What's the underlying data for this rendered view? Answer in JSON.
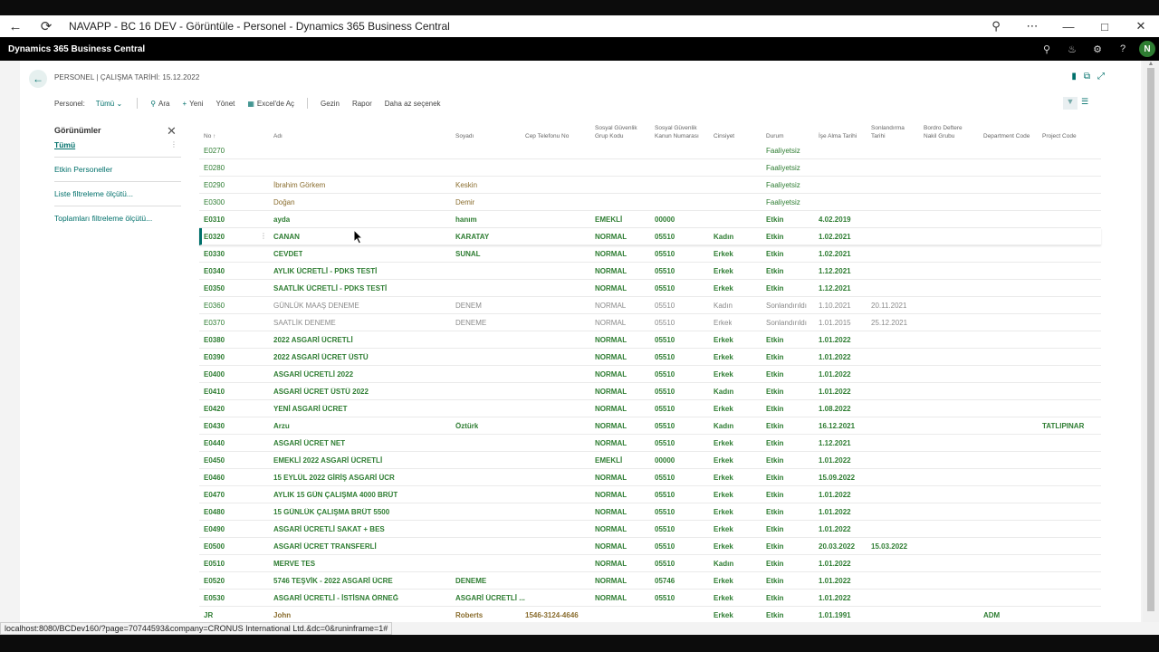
{
  "window": {
    "title": "NAVAPP - BC 16 DEV - Görüntüle - Personel - Dynamics 365 Business Central"
  },
  "app": {
    "name": "Dynamics 365 Business Central",
    "avatar": "N"
  },
  "page": {
    "breadcrumb": "PERSONEL | ÇALIŞMA TARİHİ: 15.12.2022"
  },
  "actions": {
    "filter_label": "Personel:",
    "filter_value": "Tümü",
    "search": "Ara",
    "new": "Yeni",
    "manage": "Yönet",
    "excel": "Excel'de Aç",
    "navigate": "Gezin",
    "report": "Rapor",
    "fewer": "Daha az seçenek"
  },
  "views": {
    "title": "Görünümler",
    "items": [
      "Tümü",
      "Etkin Personeller",
      "Liste filtreleme ölçütü...",
      "Toplamları filtreleme ölçütü..."
    ]
  },
  "columns": {
    "no": "No ↑",
    "adi": "Adı",
    "soyadi": "Soyadı",
    "tel": "Cep Telefonu No",
    "sgk_grup_1": "Sosyal Güvenlik",
    "sgk_grup_2": "Grup Kodu",
    "sgk_kanun_1": "Sosyal Güvenlik",
    "sgk_kanun_2": "Kanun Numarası",
    "cinsiyet": "Cinsiyet",
    "durum": "Durum",
    "ise_alma": "İşe Alma Tarihi",
    "sonlandirma_1": "Sonlandırma",
    "sonlandirma_2": "Tarihi",
    "bordro_1": "Bordro Deftere",
    "bordro_2": "Nakil Grubu",
    "dept": "Department Code",
    "project": "Project Code"
  },
  "rows": [
    {
      "no": "E0270",
      "adi": "",
      "soyadi": "",
      "tel": "",
      "grup": "",
      "kanun": "",
      "cinsiyet": "",
      "durum": "Faaliyetsiz",
      "ise": "",
      "son": "",
      "dept": "",
      "proj": "",
      "kind": "plain"
    },
    {
      "no": "E0280",
      "adi": "",
      "soyadi": "",
      "tel": "",
      "grup": "",
      "kanun": "",
      "cinsiyet": "",
      "durum": "Faaliyetsiz",
      "ise": "",
      "son": "",
      "dept": "",
      "proj": "",
      "kind": "plain"
    },
    {
      "no": "E0290",
      "adi": "İbrahim Görkem",
      "soyadi": "Keskin",
      "tel": "",
      "grup": "",
      "kanun": "",
      "cinsiyet": "",
      "durum": "Faaliyetsiz",
      "ise": "",
      "son": "",
      "dept": "",
      "proj": "",
      "kind": "plain"
    },
    {
      "no": "E0300",
      "adi": "Doğan",
      "soyadi": "Demir",
      "tel": "",
      "grup": "",
      "kanun": "",
      "cinsiyet": "",
      "durum": "Faaliyetsiz",
      "ise": "",
      "son": "",
      "dept": "",
      "proj": "",
      "kind": "plain"
    },
    {
      "no": "E0310",
      "adi": "ayda",
      "soyadi": "hanım",
      "tel": "",
      "grup": "EMEKLİ",
      "kanun": "00000",
      "cinsiyet": "",
      "durum": "Etkin",
      "ise": "4.02.2019",
      "son": "",
      "dept": "",
      "proj": "",
      "kind": "active"
    },
    {
      "no": "E0320",
      "adi": "CANAN",
      "soyadi": "KARATAY",
      "tel": "",
      "grup": "NORMAL",
      "kanun": "05510",
      "cinsiyet": "Kadın",
      "durum": "Etkin",
      "ise": "1.02.2021",
      "son": "",
      "dept": "",
      "proj": "",
      "kind": "active",
      "selected": true
    },
    {
      "no": "E0330",
      "adi": "CEVDET",
      "soyadi": "SUNAL",
      "tel": "",
      "grup": "NORMAL",
      "kanun": "05510",
      "cinsiyet": "Erkek",
      "durum": "Etkin",
      "ise": "1.02.2021",
      "son": "",
      "dept": "",
      "proj": "",
      "kind": "active"
    },
    {
      "no": "E0340",
      "adi": "AYLIK ÜCRETLİ - PDKS TESTİ",
      "soyadi": "",
      "tel": "",
      "grup": "NORMAL",
      "kanun": "05510",
      "cinsiyet": "Erkek",
      "durum": "Etkin",
      "ise": "1.12.2021",
      "son": "",
      "dept": "",
      "proj": "",
      "kind": "active"
    },
    {
      "no": "E0350",
      "adi": "SAATLİK ÜCRETLİ - PDKS TESTİ",
      "soyadi": "",
      "tel": "",
      "grup": "NORMAL",
      "kanun": "05510",
      "cinsiyet": "Erkek",
      "durum": "Etkin",
      "ise": "1.12.2021",
      "son": "",
      "dept": "",
      "proj": "",
      "kind": "active"
    },
    {
      "no": "E0360",
      "adi": "GÜNLÜK MAAŞ DENEME",
      "soyadi": "DENEM",
      "tel": "",
      "grup": "NORMAL",
      "kanun": "05510",
      "cinsiyet": "Kadın",
      "durum": "Sonlandırıldı",
      "ise": "1.10.2021",
      "son": "20.11.2021",
      "dept": "",
      "proj": "",
      "kind": "dim"
    },
    {
      "no": "E0370",
      "adi": "SAATLİK DENEME",
      "soyadi": "DENEME",
      "tel": "",
      "grup": "NORMAL",
      "kanun": "05510",
      "cinsiyet": "Erkek",
      "durum": "Sonlandırıldı",
      "ise": "1.01.2015",
      "son": "25.12.2021",
      "dept": "",
      "proj": "",
      "kind": "dim"
    },
    {
      "no": "E0380",
      "adi": "2022 ASGARİ ÜCRETLİ",
      "soyadi": "",
      "tel": "",
      "grup": "NORMAL",
      "kanun": "05510",
      "cinsiyet": "Erkek",
      "durum": "Etkin",
      "ise": "1.01.2022",
      "son": "",
      "dept": "",
      "proj": "",
      "kind": "active"
    },
    {
      "no": "E0390",
      "adi": "2022 ASGARİ ÜCRET ÜSTÜ",
      "soyadi": "",
      "tel": "",
      "grup": "NORMAL",
      "kanun": "05510",
      "cinsiyet": "Erkek",
      "durum": "Etkin",
      "ise": "1.01.2022",
      "son": "",
      "dept": "",
      "proj": "",
      "kind": "active"
    },
    {
      "no": "E0400",
      "adi": "ASGARİ ÜCRETLİ 2022",
      "soyadi": "",
      "tel": "",
      "grup": "NORMAL",
      "kanun": "05510",
      "cinsiyet": "Erkek",
      "durum": "Etkin",
      "ise": "1.01.2022",
      "son": "",
      "dept": "",
      "proj": "",
      "kind": "active"
    },
    {
      "no": "E0410",
      "adi": "ASGARİ ÜCRET ÜSTÜ 2022",
      "soyadi": "",
      "tel": "",
      "grup": "NORMAL",
      "kanun": "05510",
      "cinsiyet": "Kadın",
      "durum": "Etkin",
      "ise": "1.01.2022",
      "son": "",
      "dept": "",
      "proj": "",
      "kind": "active"
    },
    {
      "no": "E0420",
      "adi": "YENİ ASGARİ ÜCRET",
      "soyadi": "",
      "tel": "",
      "grup": "NORMAL",
      "kanun": "05510",
      "cinsiyet": "Erkek",
      "durum": "Etkin",
      "ise": "1.08.2022",
      "son": "",
      "dept": "",
      "proj": "",
      "kind": "active"
    },
    {
      "no": "E0430",
      "adi": "Arzu",
      "soyadi": "Öztürk",
      "tel": "",
      "grup": "NORMAL",
      "kanun": "05510",
      "cinsiyet": "Kadın",
      "durum": "Etkin",
      "ise": "16.12.2021",
      "son": "",
      "dept": "",
      "proj": "TATLIPINAR",
      "kind": "active"
    },
    {
      "no": "E0440",
      "adi": "ASGARİ ÜCRET NET",
      "soyadi": "",
      "tel": "",
      "grup": "NORMAL",
      "kanun": "05510",
      "cinsiyet": "Erkek",
      "durum": "Etkin",
      "ise": "1.12.2021",
      "son": "",
      "dept": "",
      "proj": "",
      "kind": "active"
    },
    {
      "no": "E0450",
      "adi": "EMEKLİ 2022 ASGARİ ÜCRETLİ",
      "soyadi": "",
      "tel": "",
      "grup": "EMEKLİ",
      "kanun": "00000",
      "cinsiyet": "Erkek",
      "durum": "Etkin",
      "ise": "1.01.2022",
      "son": "",
      "dept": "",
      "proj": "",
      "kind": "active"
    },
    {
      "no": "E0460",
      "adi": "15 EYLÜL 2022 GİRİŞ ASGARİ ÜCR",
      "soyadi": "",
      "tel": "",
      "grup": "NORMAL",
      "kanun": "05510",
      "cinsiyet": "Erkek",
      "durum": "Etkin",
      "ise": "15.09.2022",
      "son": "",
      "dept": "",
      "proj": "",
      "kind": "active"
    },
    {
      "no": "E0470",
      "adi": "AYLIK 15 GÜN ÇALIŞMA 4000 BRÜT",
      "soyadi": "",
      "tel": "",
      "grup": "NORMAL",
      "kanun": "05510",
      "cinsiyet": "Erkek",
      "durum": "Etkin",
      "ise": "1.01.2022",
      "son": "",
      "dept": "",
      "proj": "",
      "kind": "active"
    },
    {
      "no": "E0480",
      "adi": "15 GÜNLÜK ÇALIŞMA BRÜT 5500",
      "soyadi": "",
      "tel": "",
      "grup": "NORMAL",
      "kanun": "05510",
      "cinsiyet": "Erkek",
      "durum": "Etkin",
      "ise": "1.01.2022",
      "son": "",
      "dept": "",
      "proj": "",
      "kind": "active"
    },
    {
      "no": "E0490",
      "adi": "ASGARİ ÜCRETLİ SAKAT + BES",
      "soyadi": "",
      "tel": "",
      "grup": "NORMAL",
      "kanun": "05510",
      "cinsiyet": "Erkek",
      "durum": "Etkin",
      "ise": "1.01.2022",
      "son": "",
      "dept": "",
      "proj": "",
      "kind": "active"
    },
    {
      "no": "E0500",
      "adi": "ASGARİ ÜCRET TRANSFERLİ",
      "soyadi": "",
      "tel": "",
      "grup": "NORMAL",
      "kanun": "05510",
      "cinsiyet": "Erkek",
      "durum": "Etkin",
      "ise": "20.03.2022",
      "son": "15.03.2022",
      "dept": "",
      "proj": "",
      "kind": "active"
    },
    {
      "no": "E0510",
      "adi": "MERVE TES",
      "soyadi": "",
      "tel": "",
      "grup": "NORMAL",
      "kanun": "05510",
      "cinsiyet": "Kadın",
      "durum": "Etkin",
      "ise": "1.01.2022",
      "son": "",
      "dept": "",
      "proj": "",
      "kind": "active"
    },
    {
      "no": "E0520",
      "adi": "5746 TEŞVİK - 2022 ASGARİ ÜCRE",
      "soyadi": "DENEME",
      "tel": "",
      "grup": "NORMAL",
      "kanun": "05746",
      "cinsiyet": "Erkek",
      "durum": "Etkin",
      "ise": "1.01.2022",
      "son": "",
      "dept": "",
      "proj": "",
      "kind": "active"
    },
    {
      "no": "E0530",
      "adi": "ASGARİ ÜCRETLİ - İSTİSNA ÖRNEĞ",
      "soyadi": "ASGARİ ÜCRETLİ ...",
      "tel": "",
      "grup": "NORMAL",
      "kanun": "05510",
      "cinsiyet": "Erkek",
      "durum": "Etkin",
      "ise": "1.01.2022",
      "son": "",
      "dept": "",
      "proj": "",
      "kind": "active"
    },
    {
      "no": "JR",
      "adi": "John",
      "soyadi": "Roberts",
      "tel": "1546-3124-4646",
      "grup": "",
      "kanun": "",
      "cinsiyet": "Erkek",
      "durum": "Etkin",
      "ise": "1.01.1991",
      "son": "",
      "dept": "ADM",
      "proj": "",
      "kind": "john"
    }
  ],
  "status": {
    "url": "localhost:8080/BCDev160/?page=70744593&company=CRONUS International Ltd.&dc=0&runinframe=1#"
  }
}
